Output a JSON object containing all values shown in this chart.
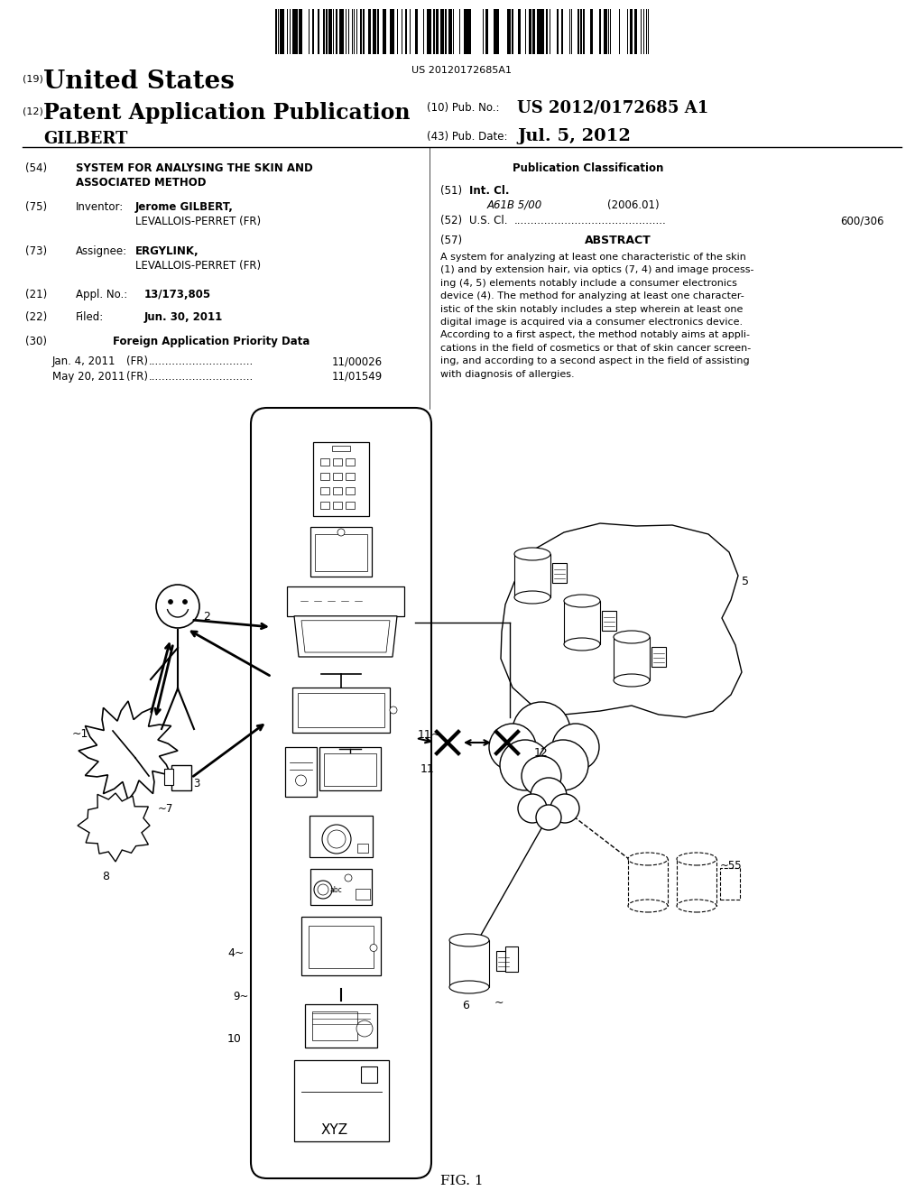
{
  "bg_color": "#ffffff",
  "barcode_text": "US 20120172685A1",
  "title19_small": "(19)",
  "title19_text": "United States",
  "title12_small": "(12)",
  "title12_text": "Patent Application Publication",
  "inventor_name": "GILBERT",
  "pub_no_label": "(10) Pub. No.:",
  "pub_no_value": "US 2012/0172685 A1",
  "pub_date_label": "(43) Pub. Date:",
  "pub_date_value": "Jul. 5, 2012",
  "field54_label": "(54)",
  "field54_line1": "SYSTEM FOR ANALYSING THE SKIN AND",
  "field54_line2": "ASSOCIATED METHOD",
  "field75_label": "(75)",
  "field75_key": "Inventor:",
  "field75_val1": "Jerome GILBERT,",
  "field75_val2": "LEVALLOIS-PERRET (FR)",
  "field73_label": "(73)",
  "field73_key": "Assignee:",
  "field73_val1": "ERGYLINK,",
  "field73_val2": "LEVALLOIS-PERRET (FR)",
  "field21_label": "(21)",
  "field21_key": "Appl. No.:",
  "field21_val": "13/173,805",
  "field22_label": "(22)",
  "field22_key": "Filed:",
  "field22_val": "Jun. 30, 2011",
  "field30_label": "(30)",
  "field30_text": "Foreign Application Priority Data",
  "priority1_date": "Jan. 4, 2011",
  "priority1_country": "(FR)",
  "priority1_dots": "...............................",
  "priority1_num": "11/00026",
  "priority2_date": "May 20, 2011",
  "priority2_country": "(FR)",
  "priority2_dots": "...............................",
  "priority2_num": "11/01549",
  "pub_class_title": "Publication Classification",
  "field51_label": "(51)",
  "field51_key": "Int. Cl.",
  "field51_class": "A61B 5/00",
  "field51_year": "(2006.01)",
  "field52_label": "(52)",
  "field52_key": "U.S. Cl.",
  "field52_dots": ".............................................",
  "field52_val": "600/306",
  "field57_label": "(57)",
  "field57_title": "ABSTRACT",
  "abstract_text": "A system for analyzing at least one characteristic of the skin\n(1) and by extension hair, via optics (7, 4) and image process-\ning (4, 5) elements notably include a consumer electronics\ndevice (4). The method for analyzing at least one character-\nistic of the skin notably includes a step wherein at least one\ndigital image is acquired via a consumer electronics device.\nAccording to a first aspect, the method notably aims at appli-\ncations in the field of cosmetics or that of skin cancer screen-\ning, and according to a second aspect in the field of assisting\nwith diagnosis of allergies."
}
